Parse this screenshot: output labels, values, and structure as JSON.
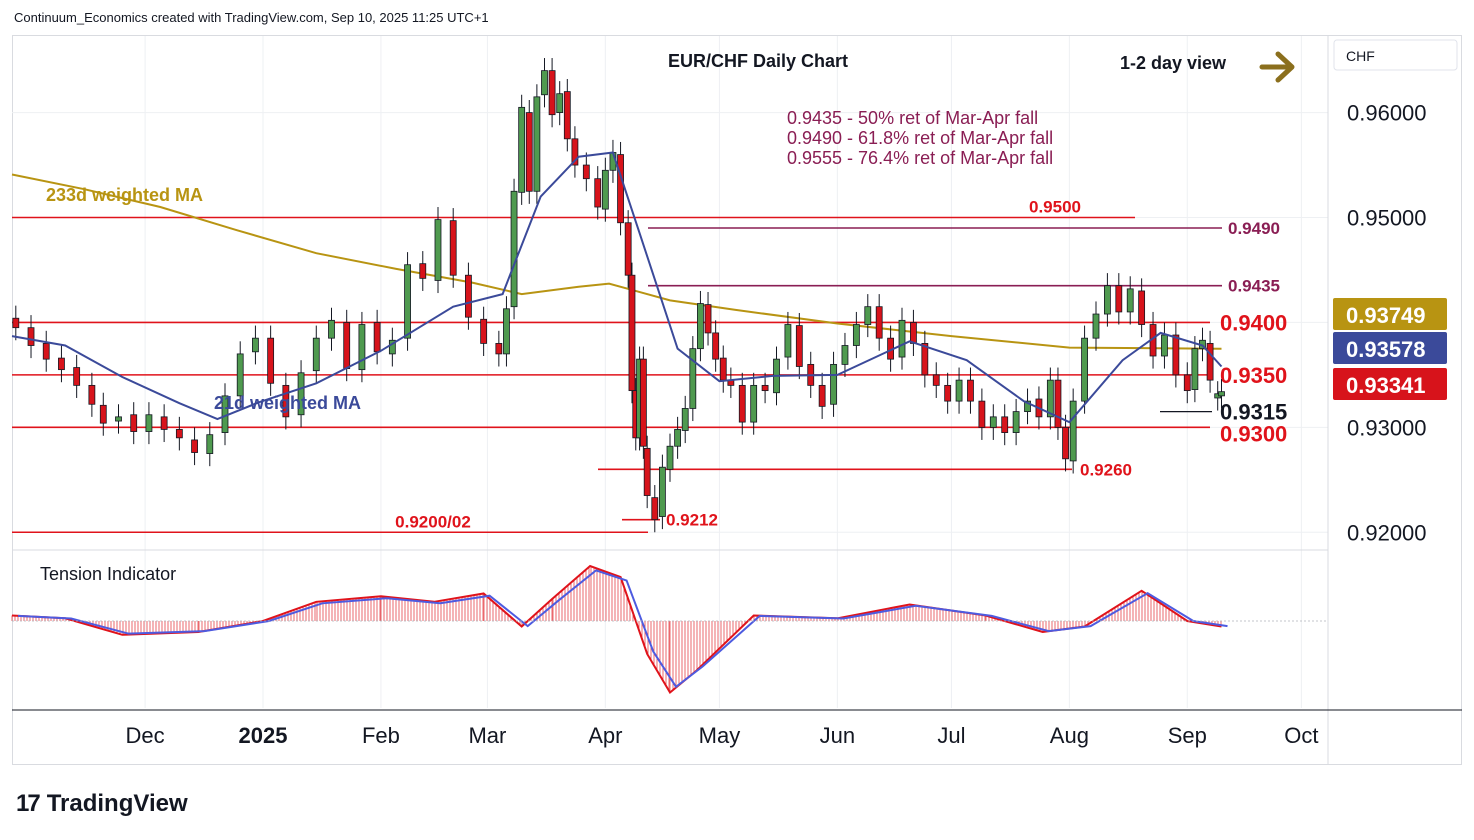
{
  "header": {
    "credit": "Continuum_Economics created with TradingView.com, Sep 10, 2025 11:25 UTC+1"
  },
  "brand": {
    "logo_text": "TradingView",
    "logo_mark": "17"
  },
  "chart_data": {
    "type": "candlestick",
    "title": "EUR/CHF Daily Chart",
    "view_label": "1-2 day view",
    "currency_label": "CHF",
    "y_ticks": [
      "0.96000",
      "0.95000",
      "0.93000",
      "0.92000"
    ],
    "x_ticks": [
      "Dec",
      "2025",
      "Feb",
      "Mar",
      "Apr",
      "May",
      "Jun",
      "Jul",
      "Aug",
      "Sep",
      "Oct"
    ],
    "ylim": [
      0.9185,
      0.9673
    ],
    "annotations": [
      "0.9435 - 50% ret of Mar-Apr fall",
      "0.9490 - 61.8% ret of Mar-Apr fall",
      "0.9555 - 76.4% ret of Mar-Apr fall"
    ],
    "levels": [
      {
        "label": "0.9500",
        "value": 0.95,
        "color": "#e0131b"
      },
      {
        "label": "0.9490",
        "value": 0.949,
        "color": "#8a1e54"
      },
      {
        "label": "0.9435",
        "value": 0.9435,
        "color": "#8a1e54"
      },
      {
        "label": "0.9400",
        "value": 0.94,
        "color": "#e0131b"
      },
      {
        "label": "0.9350",
        "value": 0.935,
        "color": "#e0131b"
      },
      {
        "label": "0.9315",
        "value": 0.9315,
        "color": "#131722"
      },
      {
        "label": "0.9300",
        "value": 0.93,
        "color": "#e0131b"
      },
      {
        "label": "0.9260",
        "value": 0.926,
        "color": "#e0131b"
      },
      {
        "label": "0.9212",
        "value": 0.9212,
        "color": "#e0131b"
      },
      {
        "label": "0.9200/02",
        "value": 0.92,
        "color": "#e0131b"
      }
    ],
    "price_tags": [
      {
        "label": "0.93749",
        "value": 0.93749,
        "color": "#b89412"
      },
      {
        "label": "0.93578",
        "value": 0.93578,
        "color": "#3b4a9a"
      },
      {
        "label": "0.93341",
        "value": 0.93341,
        "color": "#d7131b"
      }
    ],
    "ma_labels": {
      "ma233": "233d weighted MA",
      "ma21": "21d weighted MA"
    },
    "ma233": [
      [
        "2024-10-27",
        0.9541
      ],
      [
        "2024-11-15",
        0.9527
      ],
      [
        "2024-12-05",
        0.951
      ],
      [
        "2024-12-25",
        0.9488
      ],
      [
        "2025-01-15",
        0.9466
      ],
      [
        "2025-02-05",
        0.9451
      ],
      [
        "2025-02-25",
        0.9438
      ],
      [
        "2025-03-10",
        0.9427
      ],
      [
        "2025-03-25",
        0.9434
      ],
      [
        "2025-04-02",
        0.9437
      ],
      [
        "2025-04-18",
        0.9421
      ],
      [
        "2025-05-05",
        0.9412
      ],
      [
        "2025-06-01",
        0.9399
      ],
      [
        "2025-07-01",
        0.9387
      ],
      [
        "2025-08-01",
        0.9376
      ],
      [
        "2025-09-10",
        0.9375
      ]
    ],
    "ma21": [
      [
        "2024-10-27",
        0.9387
      ],
      [
        "2024-11-10",
        0.9378
      ],
      [
        "2024-11-25",
        0.9348
      ],
      [
        "2024-12-10",
        0.9323
      ],
      [
        "2024-12-20",
        0.9308
      ],
      [
        "2024-12-31",
        0.9324
      ],
      [
        "2025-01-15",
        0.9342
      ],
      [
        "2025-02-01",
        0.9373
      ],
      [
        "2025-02-20",
        0.9415
      ],
      [
        "2025-03-05",
        0.9427
      ],
      [
        "2025-03-15",
        0.952
      ],
      [
        "2025-03-25",
        0.9558
      ],
      [
        "2025-04-03",
        0.9562
      ],
      [
        "2025-04-10",
        0.9485
      ],
      [
        "2025-04-20",
        0.9375
      ],
      [
        "2025-05-01",
        0.9344
      ],
      [
        "2025-05-15",
        0.9349
      ],
      [
        "2025-06-01",
        0.935
      ],
      [
        "2025-06-20",
        0.9382
      ],
      [
        "2025-07-05",
        0.9364
      ],
      [
        "2025-07-20",
        0.9325
      ],
      [
        "2025-08-01",
        0.9305
      ],
      [
        "2025-08-15",
        0.9364
      ],
      [
        "2025-08-25",
        0.939
      ],
      [
        "2025-09-05",
        0.9378
      ],
      [
        "2025-09-10",
        0.9358
      ]
    ],
    "candles": [
      [
        "2024-10-28",
        0.9404,
        0.9395
      ],
      [
        "2024-11-01",
        0.9395,
        0.9378
      ],
      [
        "2024-11-05",
        0.938,
        0.9365
      ],
      [
        "2024-11-09",
        0.9366,
        0.9355
      ],
      [
        "2024-11-13",
        0.9357,
        0.934
      ],
      [
        "2024-11-17",
        0.934,
        0.9322
      ],
      [
        "2024-11-20",
        0.9321,
        0.9304
      ],
      [
        "2024-11-24",
        0.9306,
        0.931
      ],
      [
        "2024-11-28",
        0.9312,
        0.9296
      ],
      [
        "2024-12-02",
        0.9296,
        0.9312
      ],
      [
        "2024-12-06",
        0.931,
        0.9298
      ],
      [
        "2024-12-10",
        0.9298,
        0.929
      ],
      [
        "2024-12-14",
        0.9288,
        0.9276
      ],
      [
        "2024-12-18",
        0.9275,
        0.9293
      ],
      [
        "2024-12-22",
        0.9295,
        0.933
      ],
      [
        "2024-12-26",
        0.933,
        0.937
      ],
      [
        "2024-12-30",
        0.9372,
        0.9385
      ],
      [
        "2025-01-03",
        0.9385,
        0.9342
      ],
      [
        "2025-01-07",
        0.934,
        0.931
      ],
      [
        "2025-01-11",
        0.9312,
        0.9352
      ],
      [
        "2025-01-15",
        0.9354,
        0.9385
      ],
      [
        "2025-01-19",
        0.9385,
        0.9402
      ],
      [
        "2025-01-23",
        0.94,
        0.9356
      ],
      [
        "2025-01-27",
        0.9355,
        0.9398
      ],
      [
        "2025-01-31",
        0.94,
        0.9372
      ],
      [
        "2025-02-04",
        0.937,
        0.9383
      ],
      [
        "2025-02-08",
        0.9385,
        0.9455
      ],
      [
        "2025-02-12",
        0.9456,
        0.9442
      ],
      [
        "2025-02-16",
        0.944,
        0.9498
      ],
      [
        "2025-02-20",
        0.9497,
        0.9445
      ],
      [
        "2025-02-24",
        0.9445,
        0.9405
      ],
      [
        "2025-02-28",
        0.9403,
        0.938
      ],
      [
        "2025-03-04",
        0.938,
        0.937
      ],
      [
        "2025-03-06",
        0.937,
        0.9413
      ],
      [
        "2025-03-08",
        0.9415,
        0.9525
      ],
      [
        "2025-03-10",
        0.9524,
        0.9605
      ],
      [
        "2025-03-12",
        0.96,
        0.9525
      ],
      [
        "2025-03-14",
        0.9525,
        0.9615
      ],
      [
        "2025-03-16",
        0.9617,
        0.964
      ],
      [
        "2025-03-18",
        0.964,
        0.9598
      ],
      [
        "2025-03-20",
        0.96,
        0.9618
      ],
      [
        "2025-03-22",
        0.962,
        0.9575
      ],
      [
        "2025-03-24",
        0.9575,
        0.955
      ],
      [
        "2025-03-27",
        0.955,
        0.9537
      ],
      [
        "2025-03-30",
        0.9537,
        0.951
      ],
      [
        "2025-04-01",
        0.9508,
        0.9545
      ],
      [
        "2025-04-03",
        0.9545,
        0.9562
      ],
      [
        "2025-04-05",
        0.956,
        0.9495
      ],
      [
        "2025-04-07",
        0.9495,
        0.9445
      ],
      [
        "2025-04-08",
        0.9445,
        0.9335
      ],
      [
        "2025-04-09",
        0.9335,
        0.929
      ],
      [
        "2025-04-10",
        0.929,
        0.9365
      ],
      [
        "2025-04-11",
        0.9365,
        0.9282
      ],
      [
        "2025-04-12",
        0.928,
        0.9235
      ],
      [
        "2025-04-14",
        0.9233,
        0.9212
      ],
      [
        "2025-04-16",
        0.9215,
        0.9262
      ],
      [
        "2025-04-18",
        0.926,
        0.9282
      ],
      [
        "2025-04-20",
        0.9282,
        0.9298
      ],
      [
        "2025-04-22",
        0.9297,
        0.9318
      ],
      [
        "2025-04-24",
        0.9318,
        0.9375
      ],
      [
        "2025-04-26",
        0.9375,
        0.9418
      ],
      [
        "2025-04-28",
        0.9417,
        0.939
      ],
      [
        "2025-04-30",
        0.939,
        0.9365
      ],
      [
        "2025-05-02",
        0.9366,
        0.9345
      ],
      [
        "2025-05-04",
        0.9345,
        0.934
      ],
      [
        "2025-05-07",
        0.934,
        0.9305
      ],
      [
        "2025-05-10",
        0.9305,
        0.934
      ],
      [
        "2025-05-13",
        0.934,
        0.9335
      ],
      [
        "2025-05-16",
        0.9333,
        0.9365
      ],
      [
        "2025-05-19",
        0.9367,
        0.9398
      ],
      [
        "2025-05-22",
        0.9397,
        0.9358
      ],
      [
        "2025-05-25",
        0.936,
        0.934
      ],
      [
        "2025-05-28",
        0.934,
        0.932
      ],
      [
        "2025-05-31",
        0.9322,
        0.936
      ],
      [
        "2025-06-03",
        0.936,
        0.9378
      ],
      [
        "2025-06-06",
        0.9378,
        0.9398
      ],
      [
        "2025-06-09",
        0.9398,
        0.9415
      ],
      [
        "2025-06-12",
        0.9415,
        0.9385
      ],
      [
        "2025-06-15",
        0.9385,
        0.9365
      ],
      [
        "2025-06-18",
        0.9367,
        0.9402
      ],
      [
        "2025-06-21",
        0.94,
        0.938
      ],
      [
        "2025-06-24",
        0.938,
        0.935
      ],
      [
        "2025-06-27",
        0.935,
        0.934
      ],
      [
        "2025-06-30",
        0.934,
        0.9325
      ],
      [
        "2025-07-03",
        0.9325,
        0.9345
      ],
      [
        "2025-07-06",
        0.9345,
        0.9325
      ],
      [
        "2025-07-09",
        0.9325,
        0.93
      ],
      [
        "2025-07-12",
        0.93,
        0.931
      ],
      [
        "2025-07-15",
        0.931,
        0.9295
      ],
      [
        "2025-07-18",
        0.9295,
        0.9315
      ],
      [
        "2025-07-21",
        0.9315,
        0.9325
      ],
      [
        "2025-07-24",
        0.9327,
        0.931
      ],
      [
        "2025-07-27",
        0.931,
        0.9345
      ],
      [
        "2025-07-29",
        0.9345,
        0.93
      ],
      [
        "2025-07-31",
        0.93,
        0.927
      ],
      [
        "2025-08-02",
        0.9268,
        0.9325
      ],
      [
        "2025-08-05",
        0.9325,
        0.9385
      ],
      [
        "2025-08-08",
        0.9385,
        0.9408
      ],
      [
        "2025-08-11",
        0.9408,
        0.9435
      ],
      [
        "2025-08-14",
        0.9435,
        0.941
      ],
      [
        "2025-08-17",
        0.941,
        0.9432
      ],
      [
        "2025-08-20",
        0.943,
        0.9398
      ],
      [
        "2025-08-23",
        0.9398,
        0.9368
      ],
      [
        "2025-08-26",
        0.9368,
        0.9388
      ],
      [
        "2025-08-29",
        0.9388,
        0.935
      ],
      [
        "2025-09-01",
        0.935,
        0.9335
      ],
      [
        "2025-09-03",
        0.9336,
        0.9375
      ],
      [
        "2025-09-05",
        0.9375,
        0.9383
      ],
      [
        "2025-09-07",
        0.938,
        0.9345
      ],
      [
        "2025-09-09",
        0.9328,
        0.9332
      ],
      [
        "2025-09-10",
        0.933,
        0.9334
      ]
    ],
    "tension_indicator": {
      "label": "Tension Indicator",
      "line": [
        [
          "2024-10-27",
          0.1
        ],
        [
          "2024-11-10",
          0.05
        ],
        [
          "2024-11-25",
          -0.25
        ],
        [
          "2024-12-15",
          -0.2
        ],
        [
          "2025-01-01",
          0.0
        ],
        [
          "2025-01-15",
          0.35
        ],
        [
          "2025-02-01",
          0.45
        ],
        [
          "2025-02-15",
          0.35
        ],
        [
          "2025-02-28",
          0.5
        ],
        [
          "2025-03-10",
          -0.1
        ],
        [
          "2025-03-18",
          0.4
        ],
        [
          "2025-03-28",
          1.0
        ],
        [
          "2025-04-05",
          0.8
        ],
        [
          "2025-04-12",
          -0.6
        ],
        [
          "2025-04-18",
          -1.3
        ],
        [
          "2025-04-25",
          -0.9
        ],
        [
          "2025-05-10",
          0.1
        ],
        [
          "2025-06-01",
          0.05
        ],
        [
          "2025-06-20",
          0.3
        ],
        [
          "2025-07-10",
          0.1
        ],
        [
          "2025-07-25",
          -0.2
        ],
        [
          "2025-08-05",
          -0.1
        ],
        [
          "2025-08-20",
          0.55
        ],
        [
          "2025-09-01",
          0.0
        ],
        [
          "2025-09-10",
          -0.1
        ]
      ]
    }
  }
}
